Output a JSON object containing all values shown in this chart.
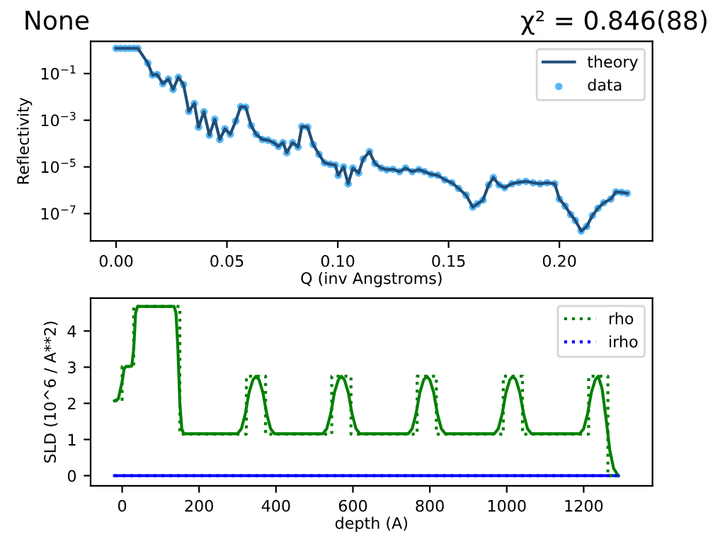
{
  "chart_data": [
    {
      "type": "line",
      "title": "None",
      "annotations": [
        "χ² = 0.846(88)"
      ],
      "xlabel": "Q (inv Angstroms)",
      "ylabel": "Reflectivity",
      "log": "y",
      "xlim": [
        -0.0115,
        0.242
      ],
      "xticks": [
        {
          "value": 0,
          "label": "0.00"
        },
        0.05,
        {
          "value": 0.1,
          "label": "0.10"
        },
        0.15,
        {
          "value": 0.2,
          "label": "0.20"
        }
      ],
      "ylim": [
        6.7e-09,
        2.4
      ],
      "yticks": [
        {
          "value": 1e-07,
          "label": "10$^{−7}$"
        },
        {
          "value": 1e-05,
          "label": "10$^{−5}$"
        },
        {
          "value": 0.001,
          "label": "10$^{−3}$"
        },
        {
          "value": 0.1,
          "label": "10$^{−1}$"
        }
      ],
      "legend": "top right",
      "grid": false,
      "x": [
        0,
        0.002,
        0.004,
        0.006,
        0.008,
        0.0098,
        0.0143,
        0.0164,
        0.0185,
        0.0211,
        0.0236,
        0.0257,
        0.0281,
        0.0304,
        0.0328,
        0.0353,
        0.0372,
        0.0396,
        0.0421,
        0.0445,
        0.0468,
        0.0491,
        0.0515,
        0.054,
        0.0562,
        0.0585,
        0.0609,
        0.0632,
        0.066,
        0.0685,
        0.0711,
        0.0732,
        0.0753,
        0.077,
        0.0796,
        0.0821,
        0.0838,
        0.0864,
        0.0889,
        0.0915,
        0.094,
        0.0966,
        0.0989,
        0.1002,
        0.1026,
        0.1047,
        0.1068,
        0.1094,
        0.1115,
        0.1143,
        0.1168,
        0.1196,
        0.1221,
        0.1249,
        0.1279,
        0.1306,
        0.1336,
        0.1366,
        0.1391,
        0.1421,
        0.1451,
        0.1483,
        0.1515,
        0.1545,
        0.1579,
        0.1609,
        0.163,
        0.1655,
        0.1681,
        0.1702,
        0.1728,
        0.1753,
        0.1785,
        0.1817,
        0.1849,
        0.1881,
        0.1913,
        0.1945,
        0.1979,
        0.2,
        0.2026,
        0.2051,
        0.2072,
        0.2098,
        0.2123,
        0.2149,
        0.2174,
        0.22,
        0.2232,
        0.2255,
        0.2281,
        0.2306
      ],
      "series": [
        {
          "name": "theory",
          "type": "line",
          "color": "#1f4e79",
          "line_style": "solid",
          "marker": "none",
          "values": [
            1.2,
            1.2,
            1.2,
            1.2,
            1.2,
            1.2,
            0.28,
            0.087,
            0.091,
            0.037,
            0.058,
            0.021,
            0.069,
            0.034,
            0.0024,
            0.0052,
            0.00051,
            0.0023,
            0.00023,
            0.0011,
            0.00015,
            0.00043,
            0.00025,
            0.00093,
            0.0038,
            0.0036,
            0.00059,
            0.00025,
            0.00015,
            0.00014,
            0.00011,
            7.6e-05,
            0.00011,
            4.1e-05,
            0.00011,
            7.2e-05,
            0.00054,
            0.00051,
            9.1e-05,
            3.5e-05,
            1.5e-05,
            1.3e-05,
            1.2e-05,
            4.4e-06,
            1e-05,
            1.9e-06,
            8.9e-06,
            5.5e-06,
            2.2e-05,
            4.5e-05,
            1.4e-05,
            8.9e-06,
            7.6e-06,
            7.9e-06,
            6.3e-06,
            8.9e-06,
            6.3e-06,
            7.6e-06,
            6.3e-06,
            4.8e-06,
            4.4e-06,
            2.8e-06,
            2.1e-06,
            1.2e-06,
            6.2e-07,
            1.9e-07,
            2.6e-07,
            3.8e-07,
            1.7e-06,
            3.5e-06,
            1.7e-06,
            1.3e-06,
            1.9e-06,
            2.2e-06,
            2.4e-06,
            2.1e-06,
            1.9e-06,
            2.1e-06,
            1.9e-06,
            4.2e-07,
            2.1e-07,
            9.1e-08,
            5.1e-08,
            1.8e-08,
            2.8e-08,
            8.3e-08,
            1.7e-07,
            2.9e-07,
            4.2e-07,
            8.5e-07,
            8.1e-07,
            7.4e-07
          ]
        },
        {
          "name": "data",
          "type": "scatter",
          "color": "#5bb8f5",
          "marker": "circle",
          "values": [
            1.2,
            1.2,
            1.2,
            1.2,
            1.2,
            1.2,
            0.28,
            0.087,
            0.091,
            0.037,
            0.058,
            0.021,
            0.069,
            0.034,
            0.0024,
            0.0052,
            0.00051,
            0.0023,
            0.00023,
            0.0011,
            0.00015,
            0.00043,
            0.00025,
            0.00093,
            0.0038,
            0.0036,
            0.00059,
            0.00025,
            0.00015,
            0.00014,
            0.00011,
            7.6e-05,
            0.00011,
            4.1e-05,
            0.00011,
            7.2e-05,
            0.00054,
            0.00051,
            9.1e-05,
            3.5e-05,
            1.5e-05,
            1.3e-05,
            1.2e-05,
            4.4e-06,
            1e-05,
            1.9e-06,
            8.9e-06,
            5.5e-06,
            2.2e-05,
            4.5e-05,
            1.4e-05,
            8.9e-06,
            7.6e-06,
            7.9e-06,
            6.3e-06,
            8.9e-06,
            6.3e-06,
            7.6e-06,
            6.3e-06,
            4.8e-06,
            4.4e-06,
            2.8e-06,
            2.1e-06,
            1.2e-06,
            6.2e-07,
            1.9e-07,
            2.6e-07,
            3.8e-07,
            1.7e-06,
            3.5e-06,
            1.7e-06,
            1.3e-06,
            1.9e-06,
            2.2e-06,
            2.4e-06,
            2.1e-06,
            1.9e-06,
            2.1e-06,
            1.9e-06,
            4.2e-07,
            2.1e-07,
            9.1e-08,
            5.1e-08,
            1.8e-08,
            2.8e-08,
            8.3e-08,
            1.7e-07,
            2.9e-07,
            4.2e-07,
            8.5e-07,
            8.1e-07,
            7.4e-07
          ]
        }
      ]
    },
    {
      "type": "line",
      "xlabel": "depth (A)",
      "ylabel": "SLD (10^6 / A**2)",
      "xlim": [
        -82,
        1379
      ],
      "xticks": [
        0,
        200,
        400,
        600,
        800,
        1000,
        1200
      ],
      "ylim": [
        -0.28,
        4.91
      ],
      "yticks": [
        0,
        1,
        2,
        3,
        4
      ],
      "legend": "top right",
      "grid": false,
      "series": [
        {
          "name": "rho",
          "color": "#008000",
          "line_style": "dotted",
          "x": [
            -20,
            0,
            0,
            30,
            30,
            150,
            150,
            323,
            323,
            373,
            373,
            545,
            545,
            595,
            595,
            767,
            767,
            817,
            817,
            991,
            991,
            1041,
            1041,
            1213,
            1213,
            1263,
            1263,
            1290
          ],
          "values": [
            2.07,
            2.07,
            3.02,
            3.02,
            4.68,
            4.68,
            1.15,
            1.15,
            2.75,
            2.75,
            1.15,
            1.15,
            2.75,
            2.75,
            1.15,
            1.15,
            2.75,
            2.75,
            1.15,
            1.15,
            2.75,
            2.75,
            1.15,
            1.15,
            2.75,
            2.75,
            0,
            0
          ]
        },
        {
          "name": "irho",
          "color": "#0000ff",
          "line_style": "dotted",
          "x": [
            -20,
            1290
          ],
          "values": [
            0,
            0
          ]
        },
        {
          "color": "#008000",
          "line_style": "solid",
          "x": [
            -20,
            -10,
            0,
            5,
            10,
            25,
            30,
            35,
            40,
            135,
            140,
            145,
            150,
            155,
            160,
            300,
            310,
            320,
            330,
            340,
            348,
            356,
            366,
            376,
            386,
            396,
            522,
            532,
            542,
            552,
            562,
            570,
            578,
            588,
            598,
            608,
            618,
            744,
            754,
            764,
            774,
            784,
            792,
            800,
            810,
            820,
            830,
            840,
            968,
            978,
            988,
            998,
            1008,
            1016,
            1024,
            1034,
            1044,
            1054,
            1064,
            1190,
            1200,
            1210,
            1220,
            1230,
            1238,
            1248,
            1258,
            1268,
            1278,
            1290
          ],
          "values": [
            2.07,
            2.12,
            2.6,
            2.95,
            3.02,
            3.03,
            3.5,
            4.5,
            4.68,
            4.68,
            4.5,
            3.5,
            2.0,
            1.3,
            1.16,
            1.16,
            1.3,
            1.7,
            2.3,
            2.65,
            2.75,
            2.65,
            2.3,
            1.7,
            1.3,
            1.16,
            1.16,
            1.3,
            1.7,
            2.3,
            2.65,
            2.75,
            2.65,
            2.3,
            1.7,
            1.3,
            1.16,
            1.16,
            1.3,
            1.7,
            2.3,
            2.65,
            2.75,
            2.65,
            2.3,
            1.7,
            1.3,
            1.16,
            1.16,
            1.3,
            1.7,
            2.3,
            2.65,
            2.75,
            2.65,
            2.3,
            1.7,
            1.3,
            1.16,
            1.16,
            1.3,
            1.7,
            2.3,
            2.65,
            2.75,
            2.4,
            1.6,
            0.7,
            0.2,
            0
          ]
        },
        {
          "color": "#0000ff",
          "line_style": "solid",
          "x": [
            -20,
            1290
          ],
          "values": [
            0,
            0
          ]
        }
      ]
    }
  ]
}
